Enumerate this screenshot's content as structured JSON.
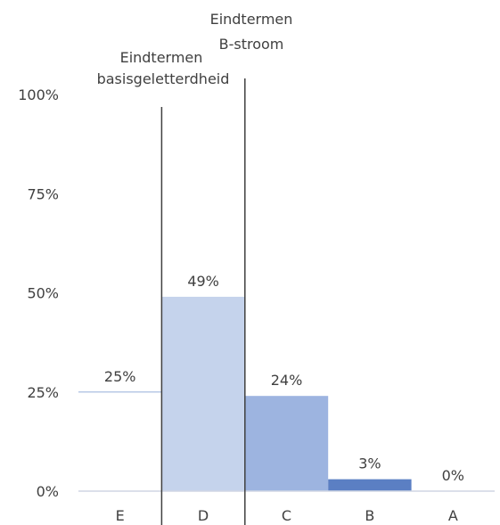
{
  "chart_data": {
    "type": "bar",
    "categories": [
      "E",
      "D",
      "C",
      "B",
      "A"
    ],
    "values": [
      25,
      49,
      24,
      3,
      0
    ],
    "data_labels": [
      "25%",
      "49%",
      "24%",
      "3%",
      "0%"
    ],
    "colors": [
      "#b8c8e6",
      "#c5d3ec",
      "#9db4e0",
      "#5b7fc3",
      "#c8d3ea"
    ],
    "ylim": [
      0,
      100
    ],
    "y_ticks": [
      0,
      25,
      50,
      75,
      100
    ],
    "y_tick_labels": [
      "0%",
      "25%",
      "50%",
      "75%",
      "100%"
    ],
    "grid": false,
    "xlabel": "",
    "ylabel": "",
    "title": "",
    "threshold_lines": [
      {
        "between": [
          "E",
          "D"
        ],
        "label_line1": "Eindtermen",
        "label_line2": "basisgeletterdheid"
      },
      {
        "between": [
          "D",
          "C"
        ],
        "label_line1": "Eindtermen",
        "label_line2": "B-stroom"
      }
    ]
  }
}
